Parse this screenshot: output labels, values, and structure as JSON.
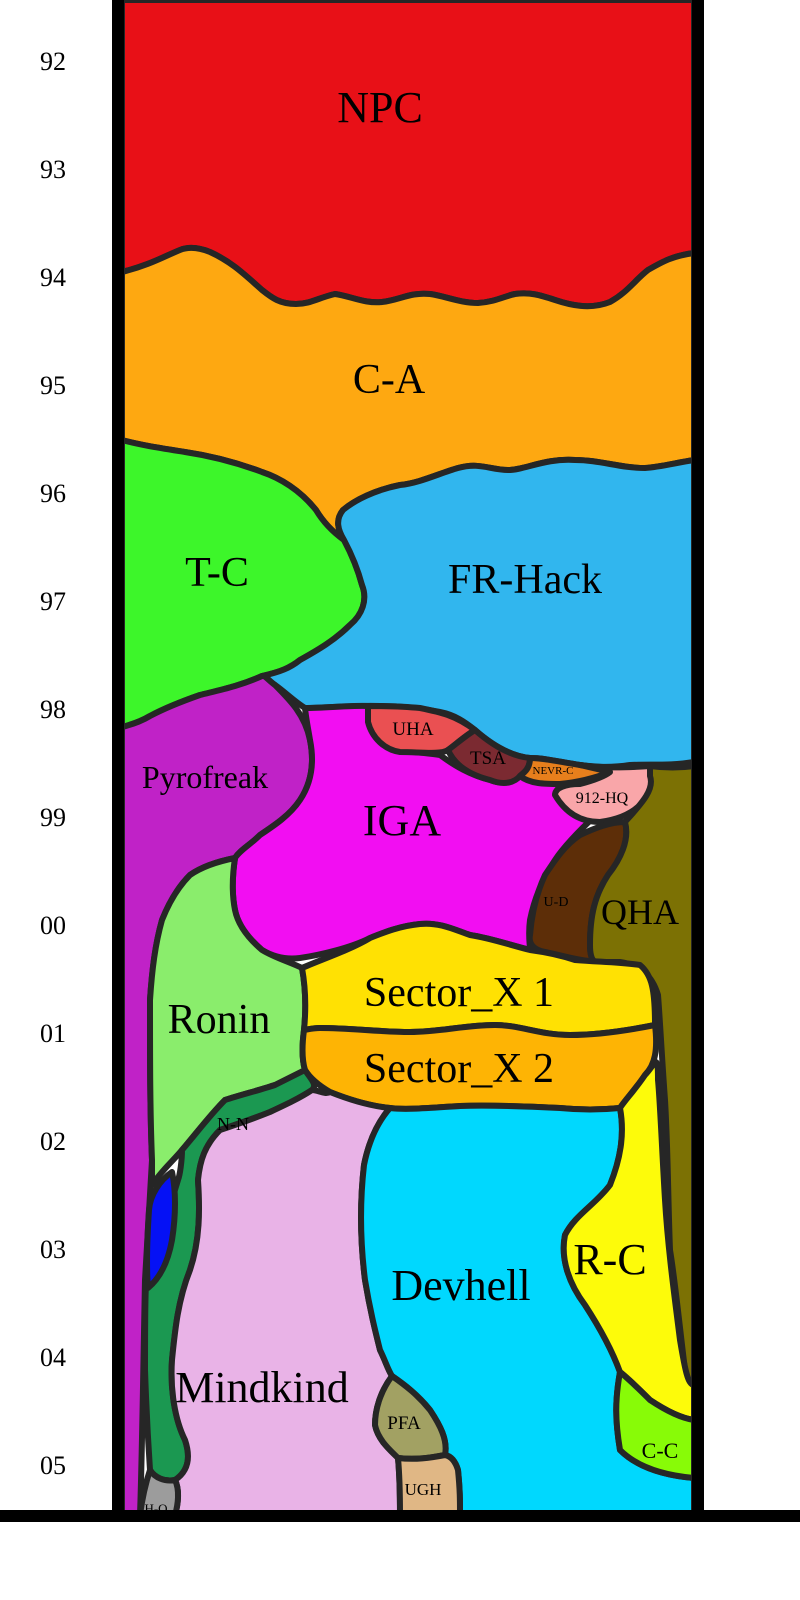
{
  "years": [
    "92",
    "93",
    "94",
    "95",
    "96",
    "97",
    "98",
    "99",
    "00",
    "01",
    "02",
    "03",
    "04",
    "05"
  ],
  "colors": {
    "outline": "#262626",
    "frame": "#000000",
    "npc": "#e81017",
    "ca": "#fea811",
    "tc": "#3df62a",
    "frhack": "#31b6ee",
    "pyrofreak": "#c022c7",
    "iga": "#f20ef2",
    "uha": "#ea5052",
    "tsa": "#7b2a31",
    "nevrc": "#e77f1c",
    "hq912": "#f9a6a9",
    "ud": "#5d2e08",
    "qha": "#7c7104",
    "ronin": "#8aed6c",
    "sectorx1": "#ffe103",
    "sectorx2": "#feb404",
    "nn": "#1b9851",
    "blue": "#0511f5",
    "mindkind": "#e9b3e7",
    "devhell": "#00d8fe",
    "rc": "#fdfb0a",
    "cc": "#88fb07",
    "pfa": "#a2a163",
    "ugh": "#e0b785",
    "hqs": "#9c9c9c"
  },
  "labels": {
    "npc": "NPC",
    "ca": "C-A",
    "tc": "T-C",
    "frhack": "FR-Hack",
    "pyrofreak": "Pyrofreak",
    "iga": "IGA",
    "uha": "UHA",
    "tsa": "TSA",
    "nevrc": "NEVR-C",
    "hq912": "912-HQ",
    "ud": "U-D",
    "qha": "QHA",
    "ronin": "Ronin",
    "sectorx1": "Sector_X 1",
    "sectorx2": "Sector_X 2",
    "nn": "N-N",
    "mindkind": "Mindkind",
    "devhell": "Devhell",
    "rc": "R-C",
    "cc": "C-C",
    "pfa": "PFA",
    "ugh": "UGH",
    "hqs": "H-Q"
  }
}
